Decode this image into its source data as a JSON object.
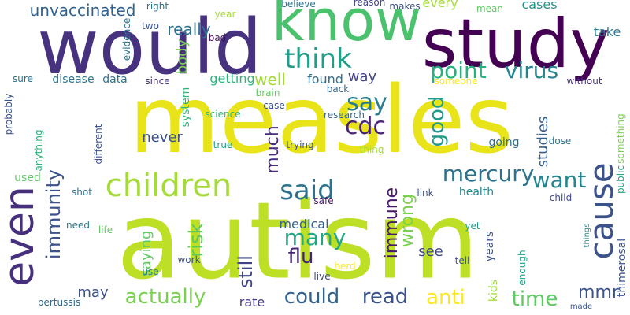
{
  "wordcloud": {
    "words": [
      {
        "text": "measles",
        "color": "#e8e419"
      },
      {
        "text": "autism",
        "color": "#bddf26"
      },
      {
        "text": "would",
        "color": "#46327e"
      },
      {
        "text": "study",
        "color": "#440154"
      },
      {
        "text": "know",
        "color": "#4ac16d"
      },
      {
        "text": "even",
        "color": "#46307e"
      },
      {
        "text": "children",
        "color": "#a5db36"
      },
      {
        "text": "cause",
        "color": "#3b528b"
      },
      {
        "text": "said",
        "color": "#2c728e"
      },
      {
        "text": "think",
        "color": "#1f9e89"
      },
      {
        "text": "say",
        "color": "#287c8e"
      },
      {
        "text": "point",
        "color": "#2ab07f"
      },
      {
        "text": "virus",
        "color": "#25858e"
      },
      {
        "text": "mercury",
        "color": "#2c728e"
      },
      {
        "text": "cdc",
        "color": "#482374"
      },
      {
        "text": "good",
        "color": "#1e9c89"
      },
      {
        "text": "immunity",
        "color": "#3b528b"
      },
      {
        "text": "want",
        "color": "#25858e"
      },
      {
        "text": "actually",
        "color": "#7ad151"
      },
      {
        "text": "could",
        "color": "#33638d"
      },
      {
        "text": "read",
        "color": "#3b528b"
      },
      {
        "text": "anti",
        "color": "#fde725"
      },
      {
        "text": "time",
        "color": "#5ec962"
      },
      {
        "text": "flu",
        "color": "#482475"
      },
      {
        "text": "many",
        "color": "#22a884"
      },
      {
        "text": "still",
        "color": "#414487"
      },
      {
        "text": "risk",
        "color": "#5ec962"
      },
      {
        "text": "much",
        "color": "#472d7b"
      },
      {
        "text": "mmr",
        "color": "#3b528b"
      },
      {
        "text": "immune",
        "color": "#48186a"
      },
      {
        "text": "wrong",
        "color": "#7ad151"
      },
      {
        "text": "unvaccinated",
        "color": "#33638d"
      },
      {
        "text": "really",
        "color": "#2c728e"
      },
      {
        "text": "well",
        "color": "#a5db36"
      },
      {
        "text": "way",
        "color": "#414487"
      },
      {
        "text": "studies",
        "color": "#355f8d"
      },
      {
        "text": "never",
        "color": "#3b528b"
      },
      {
        "text": "saying",
        "color": "#5ec962"
      },
      {
        "text": "may",
        "color": "#3b528b"
      },
      {
        "text": "see",
        "color": "#3e4989"
      },
      {
        "text": "medical",
        "color": "#33638d"
      },
      {
        "text": "rate",
        "color": "#443983"
      },
      {
        "text": "body",
        "color": "#7ad151"
      },
      {
        "text": "every",
        "color": "#a5db36"
      },
      {
        "text": "cases",
        "color": "#21918c"
      },
      {
        "text": "take",
        "color": "#2a788e"
      },
      {
        "text": "getting",
        "color": "#2fb47c"
      },
      {
        "text": "found",
        "color": "#2c728e"
      },
      {
        "text": "disease",
        "color": "#2a788e"
      },
      {
        "text": "data",
        "color": "#2c728e"
      },
      {
        "text": "going",
        "color": "#2c728e"
      },
      {
        "text": "health",
        "color": "#25858e"
      },
      {
        "text": "kids",
        "color": "#a0da39"
      },
      {
        "text": "years",
        "color": "#3b528b"
      },
      {
        "text": "thimerosal",
        "color": "#3b528b"
      },
      {
        "text": "something",
        "color": "#7ad151"
      },
      {
        "text": "public",
        "color": "#20a386"
      },
      {
        "text": "system",
        "color": "#34b679"
      },
      {
        "text": "used",
        "color": "#5ec962"
      },
      {
        "text": "need",
        "color": "#2a788e"
      },
      {
        "text": "shot",
        "color": "#2c728e"
      },
      {
        "text": "pertussis",
        "color": "#31688e"
      },
      {
        "text": "life",
        "color": "#5ec962"
      },
      {
        "text": "work",
        "color": "#3b528b"
      },
      {
        "text": "use",
        "color": "#26828e"
      },
      {
        "text": "live",
        "color": "#3e4989"
      },
      {
        "text": "herd",
        "color": "#fde725"
      },
      {
        "text": "safe",
        "color": "#48186a"
      },
      {
        "text": "tell",
        "color": "#3b528b"
      },
      {
        "text": "made",
        "color": "#3b528b"
      },
      {
        "text": "enough",
        "color": "#20a386"
      },
      {
        "text": "things",
        "color": "#21918c"
      },
      {
        "text": "yet",
        "color": "#1f9e89"
      },
      {
        "text": "child",
        "color": "#3e4989"
      },
      {
        "text": "link",
        "color": "#3b528b"
      },
      {
        "text": "dose",
        "color": "#2c728e"
      },
      {
        "text": "thing",
        "color": "#a5db36"
      },
      {
        "text": "trying",
        "color": "#3b528b"
      },
      {
        "text": "true",
        "color": "#1fa188"
      },
      {
        "text": "science",
        "color": "#34b679"
      },
      {
        "text": "brain",
        "color": "#5ec962"
      },
      {
        "text": "case",
        "color": "#3b528b"
      },
      {
        "text": "research",
        "color": "#33638d"
      },
      {
        "text": "back",
        "color": "#33638d"
      },
      {
        "text": "someone",
        "color": "#fde725"
      },
      {
        "text": "without",
        "color": "#46307e"
      },
      {
        "text": "since",
        "color": "#46307e"
      },
      {
        "text": "bad",
        "color": "#471164"
      },
      {
        "text": "believe",
        "color": "#2c728e"
      },
      {
        "text": "reason",
        "color": "#414487"
      },
      {
        "text": "makes",
        "color": "#3b528b"
      },
      {
        "text": "mean",
        "color": "#5ec962"
      },
      {
        "text": "right",
        "color": "#2c728e"
      },
      {
        "text": "year",
        "color": "#a5db36"
      },
      {
        "text": "two",
        "color": "#3b528b"
      },
      {
        "text": "evidence",
        "color": "#2c728e"
      },
      {
        "text": "sure",
        "color": "#2c728e"
      },
      {
        "text": "probably",
        "color": "#3b528b"
      },
      {
        "text": "anything",
        "color": "#2fb47c"
      },
      {
        "text": "different",
        "color": "#3b528b"
      }
    ]
  }
}
